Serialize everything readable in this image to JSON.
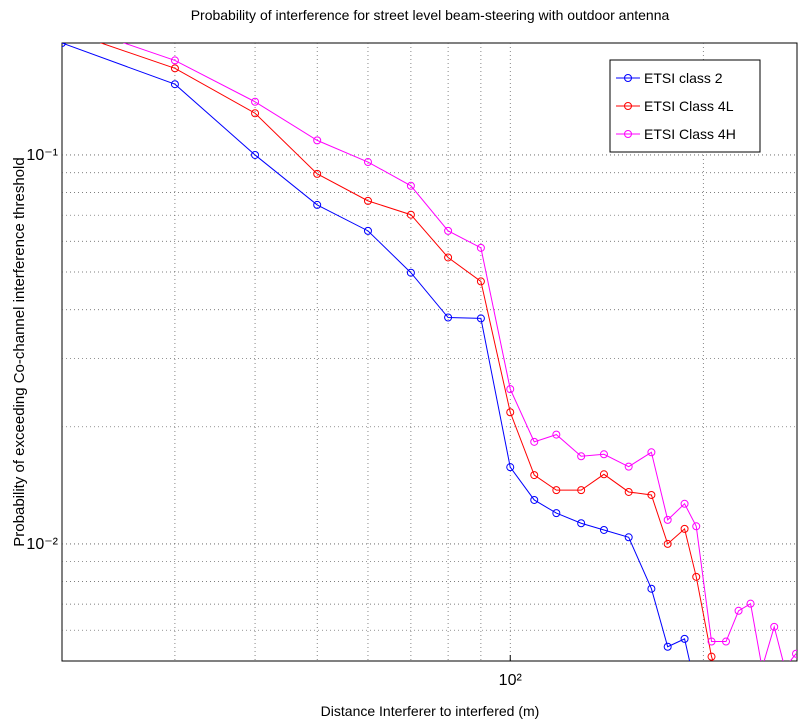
{
  "chart_data": {
    "type": "line",
    "title": "Probability of interference for street level beam-steering with outdoor antenna",
    "xlabel": "Distance Interferer to interfered (m)",
    "ylabel": "Probability of exceeding Co-channel interference threshold",
    "x": [
      20,
      30,
      40,
      50,
      60,
      70,
      80,
      90,
      100,
      109,
      118,
      129,
      140,
      153,
      166,
      176,
      187,
      195,
      206,
      217,
      227,
      237,
      247,
      258,
      268,
      279
    ],
    "series": [
      {
        "name": "ETSI class 2",
        "color": "#0000ff",
        "values": [
          0.194,
          0.152,
          0.1,
          0.0744,
          0.0638,
          0.0498,
          0.0382,
          0.038,
          0.01575,
          0.01297,
          0.012,
          0.0113,
          0.01086,
          0.0104,
          0.00767,
          0.00544,
          0.0057,
          0.0042,
          null,
          null,
          null,
          null,
          null,
          null,
          null,
          null
        ]
      },
      {
        "name": "ETSI Class 4L",
        "color": "#ff0000",
        "values": [
          0.21,
          0.167,
          0.128,
          0.0894,
          0.0762,
          0.0702,
          0.0545,
          0.0473,
          0.0218,
          0.01503,
          0.01375,
          0.01375,
          0.0151,
          0.0136,
          0.01336,
          0.01,
          0.01093,
          0.00823,
          0.00513,
          0.004,
          null,
          null,
          null,
          null,
          null,
          null
        ]
      },
      {
        "name": "ETSI Class 4H",
        "color": "#ff00ff",
        "values": [
          0.22,
          0.175,
          0.137,
          0.109,
          0.0959,
          0.0833,
          0.0638,
          0.0577,
          0.025,
          0.0183,
          0.0191,
          0.0168,
          0.017,
          0.0158,
          0.0172,
          0.01153,
          0.01268,
          0.0111,
          0.00561,
          0.00561,
          0.00673,
          0.00702,
          0.0048,
          0.00612,
          0.0048,
          0.00522
        ]
      }
    ],
    "xlim": [
      20,
      280
    ],
    "ylim": [
      0.005,
      0.194
    ],
    "xticks": [
      {
        "value": 100,
        "label": "10²"
      }
    ],
    "yticks": [
      {
        "value": 0.01,
        "label": "10⁻²"
      },
      {
        "value": 0.1,
        "label": "10⁻¹"
      }
    ],
    "xscale": "log",
    "yscale": "log",
    "grid": true,
    "legend": "upper right"
  }
}
